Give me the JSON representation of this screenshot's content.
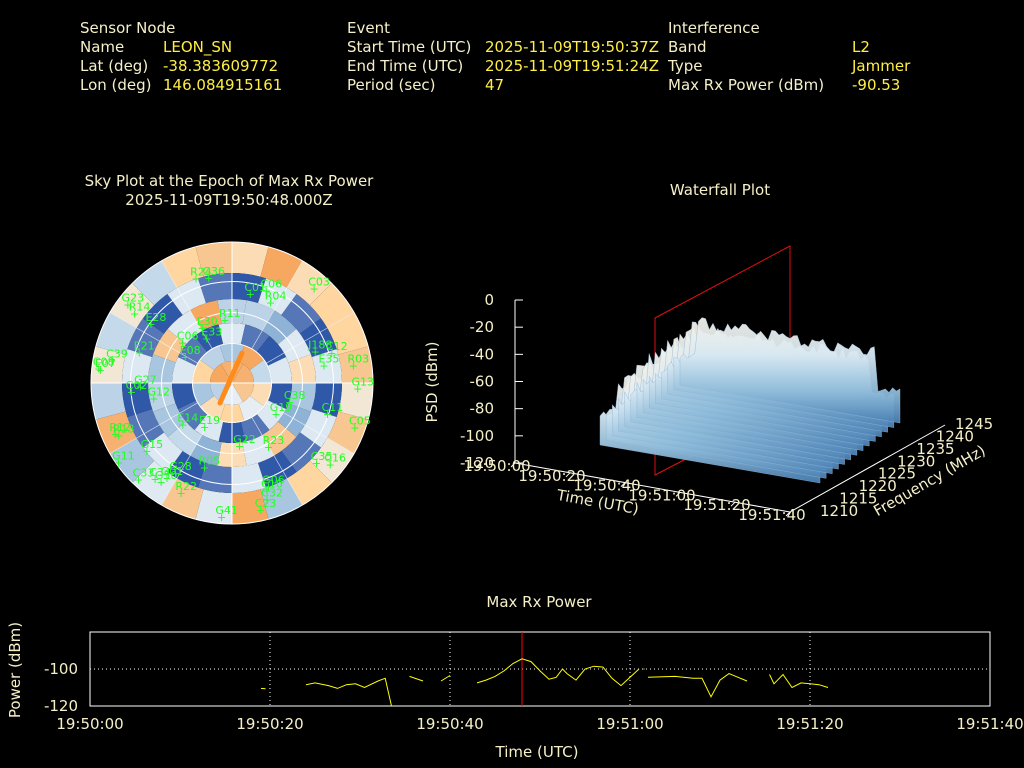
{
  "header": {
    "sensor": {
      "title": "Sensor Node",
      "rows": [
        {
          "label": "Name",
          "value": "LEON_SN"
        },
        {
          "label": "Lat (deg)",
          "value": "-38.383609772"
        },
        {
          "label": "Lon (deg)",
          "value": "146.084915161"
        }
      ]
    },
    "event": {
      "title": "Event",
      "rows": [
        {
          "label": "Start Time (UTC)",
          "value": "2025-11-09T19:50:37Z"
        },
        {
          "label": "End Time (UTC)",
          "value": "2025-11-09T19:51:24Z"
        },
        {
          "label": "Period (sec)",
          "value": "47"
        }
      ]
    },
    "interference": {
      "title": "Interference",
      "rows": [
        {
          "label": "Band",
          "value": "L2"
        },
        {
          "label": "Type",
          "value": "Jammer"
        },
        {
          "label": "Max Rx Power (dBm)",
          "value": "-90.53"
        }
      ]
    }
  },
  "skyplot": {
    "title": "Sky Plot at the Epoch of Max Rx Power",
    "subtitle": "2025-11-09T19:50:48.000Z",
    "satellites": [
      "G11",
      "C38",
      "R03",
      "J188",
      "E21",
      "C33",
      "R24",
      "C11",
      "C10",
      "G13",
      "C03",
      "C01",
      "G06",
      "G30",
      "C02",
      "E08",
      "C06",
      "C06",
      "C39",
      "E28",
      "E07",
      "C34",
      "C05",
      "C08",
      "G15",
      "G27",
      "C12",
      "E35",
      "G41",
      "R23",
      "R12",
      "E33",
      "G12",
      "C16",
      "G19",
      "C23",
      "E19",
      "R04",
      "G36",
      "R13",
      "G22",
      "G28",
      "R11",
      "G23",
      "E14",
      "R14",
      "R22",
      "C32",
      "G01",
      "E30",
      "C35",
      "R05"
    ],
    "cone_color": "#ff8c1a"
  },
  "waterfall": {
    "title": "Waterfall Plot",
    "zlabel": "PSD (dBm)",
    "zticks": [
      "0",
      "-20",
      "-40",
      "-60",
      "-80",
      "-100",
      "-120"
    ],
    "xlabel": "Time (UTC)",
    "xticks": [
      "19:50:00",
      "19:50:20",
      "19:50:40",
      "19:51:00",
      "19:51:20",
      "19:51:40"
    ],
    "ylabel": "Frequency (MHz)",
    "yticks": [
      "1210",
      "1215",
      "1220",
      "1225",
      "1230",
      "1235",
      "1240",
      "1245"
    ]
  },
  "chart_data": {
    "type": "line",
    "title": "Max Rx Power",
    "xlabel": "Time (UTC)",
    "ylabel": "Power (dBm)",
    "xticks": [
      "19:50:00",
      "19:50:20",
      "19:50:40",
      "19:51:00",
      "19:51:20",
      "19:51:40"
    ],
    "yticks": [
      "-100",
      "-120"
    ],
    "xlim_sec": [
      0,
      100
    ],
    "ylim": [
      -120,
      -80
    ],
    "marker_time_sec": 48,
    "line_color": "#ffff00",
    "marker_color": "#ff0000",
    "segments": [
      [
        [
          19.0,
          -110.5
        ],
        [
          19.5,
          -110.7
        ]
      ],
      [
        [
          24.0,
          -108.5
        ],
        [
          25.0,
          -107.5
        ],
        [
          26.5,
          -109.0
        ],
        [
          27.5,
          -110.5
        ],
        [
          28.5,
          -108.5
        ],
        [
          29.5,
          -108.0
        ],
        [
          30.5,
          -110.0
        ],
        [
          32.0,
          -106.5
        ],
        [
          32.8,
          -105.0
        ],
        [
          33.5,
          -120.0
        ]
      ],
      [
        [
          35.5,
          -104.0
        ],
        [
          37.0,
          -106.5
        ]
      ],
      [
        [
          39.0,
          -106.5
        ],
        [
          40.0,
          -103.5
        ]
      ],
      [
        [
          43.0,
          -107.5
        ],
        [
          44.0,
          -106.0
        ],
        [
          45.0,
          -104.0
        ],
        [
          46.0,
          -101.0
        ],
        [
          47.0,
          -97.0
        ],
        [
          48.0,
          -94.5
        ],
        [
          49.0,
          -96.0
        ],
        [
          50.0,
          -101.0
        ],
        [
          51.0,
          -105.5
        ],
        [
          51.8,
          -104.5
        ],
        [
          52.5,
          -100.0
        ],
        [
          53.0,
          -102.5
        ],
        [
          54.0,
          -106.0
        ],
        [
          55.0,
          -100.0
        ],
        [
          56.0,
          -98.5
        ],
        [
          57.0,
          -99.0
        ],
        [
          58.0,
          -105.0
        ],
        [
          59.0,
          -109.0
        ],
        [
          60.0,
          -104.5
        ],
        [
          61.0,
          -100.0
        ]
      ],
      [
        [
          61.5,
          -100.0
        ]
      ],
      [
        [
          62.0,
          -104.5
        ],
        [
          65.0,
          -104.0
        ],
        [
          67.0,
          -105.0
        ],
        [
          68.0,
          -105.0
        ],
        [
          69.0,
          -115.0
        ],
        [
          70.0,
          -106.0
        ],
        [
          71.0,
          -102.5
        ],
        [
          72.0,
          -104.5
        ],
        [
          73.0,
          -106.5
        ]
      ],
      [
        [
          75.5,
          -103.0
        ],
        [
          76.0,
          -108.0
        ],
        [
          77.0,
          -103.0
        ],
        [
          78.0,
          -110.0
        ],
        [
          79.0,
          -107.5
        ],
        [
          80.0,
          -108.0
        ],
        [
          81.0,
          -108.5
        ],
        [
          82.0,
          -110.0
        ]
      ]
    ]
  }
}
